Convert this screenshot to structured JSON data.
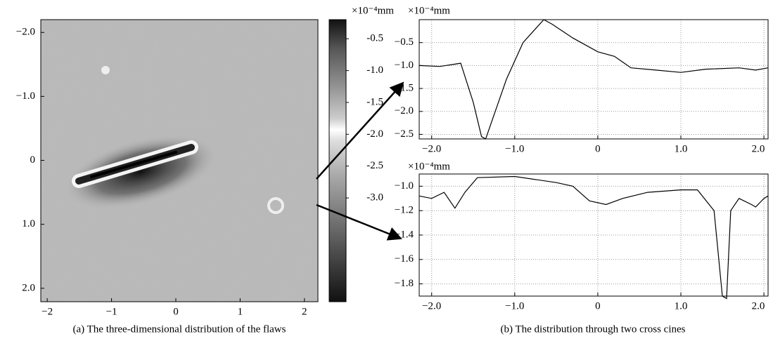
{
  "chart_data": [
    {
      "type": "heatmap",
      "caption": "(a) The three-dimensional distribution of the flaws",
      "xlim": [
        -2.1,
        2.21
      ],
      "ylim": [
        2.21,
        -2.2
      ],
      "xticks": [
        {
          "value": -2,
          "label": "−2"
        },
        {
          "value": -1,
          "label": "−1"
        },
        0,
        1,
        2
      ],
      "yticks": [
        {
          "value": -2,
          "label": "−2.0"
        },
        {
          "value": -1,
          "label": "−1.0"
        },
        0,
        {
          "value": 1,
          "label": "1.0"
        },
        {
          "value": 2,
          "label": "2.0"
        }
      ],
      "colorbar": {
        "unit": "×10⁻⁴mm",
        "lim": [
          -4.63,
          -0.2
        ],
        "ticks": [
          -0.5,
          {
            "value": -1,
            "label": "-1.0"
          },
          -1.5,
          {
            "value": -2,
            "label": "-2.0"
          },
          -2.5,
          {
            "value": -3,
            "label": "-3.0"
          }
        ]
      }
    },
    {
      "type": "line",
      "caption": "(b) The distribution through two cross cines",
      "unit": "×10⁻⁴mm",
      "x": [
        -2.15,
        -1.9,
        -1.65,
        -1.5,
        -1.4,
        -1.35,
        -1.1,
        -0.9,
        -0.65,
        -0.55,
        -0.3,
        0,
        0.2,
        0.4,
        0.7,
        1.0,
        1.3,
        1.7,
        1.9,
        2.05
      ],
      "values": [
        -1.0,
        -1.02,
        -0.95,
        -1.8,
        -2.55,
        -2.6,
        -1.3,
        -0.5,
        0,
        -0.1,
        -0.4,
        -0.7,
        -0.8,
        -1.05,
        -1.1,
        -1.15,
        -1.08,
        -1.05,
        -1.1,
        -1.05
      ],
      "color": "#000000",
      "xlim": [
        -2.15,
        2.05
      ],
      "ylim": [
        -2.6,
        0
      ],
      "xticks": [
        {
          "value": -2,
          "label": "−2.0"
        },
        {
          "value": -1,
          "label": "−1.0"
        },
        0,
        {
          "value": 1,
          "label": "1.0"
        },
        {
          "value": 2,
          "label": "2.0"
        }
      ],
      "yticks": [
        {
          "value": -0.5,
          "label": "−0.5"
        },
        {
          "value": -1,
          "label": "−1.0"
        },
        {
          "value": -1.5,
          "label": "−1.5"
        },
        {
          "value": -2,
          "label": "−2.0"
        },
        {
          "value": -2.5,
          "label": "−2.5"
        }
      ],
      "grid": true
    },
    {
      "type": "line",
      "unit": "×10⁻⁴mm",
      "x": [
        -2.15,
        -2.0,
        -1.85,
        -1.72,
        -1.6,
        -1.45,
        -1.0,
        -0.5,
        -0.3,
        -0.1,
        0.1,
        0.3,
        0.6,
        1.0,
        1.2,
        1.4,
        1.5,
        1.55,
        1.6,
        1.7,
        1.85,
        1.9,
        2.0,
        2.05
      ],
      "values": [
        -1.08,
        -1.1,
        -1.05,
        -1.18,
        -1.05,
        -0.93,
        -0.92,
        -0.97,
        -1.0,
        -1.12,
        -1.15,
        -1.1,
        -1.05,
        -1.03,
        -1.03,
        -1.2,
        -1.9,
        -1.92,
        -1.2,
        -1.1,
        -1.15,
        -1.17,
        -1.1,
        -1.08
      ],
      "color": "#000000",
      "xlim": [
        -2.15,
        2.05
      ],
      "ylim": [
        -1.9,
        -0.9
      ],
      "xticks": [
        {
          "value": -2,
          "label": "−2.0"
        },
        {
          "value": -1,
          "label": "−1.0"
        },
        0,
        {
          "value": 1,
          "label": "1.0"
        },
        {
          "value": 2,
          "label": "2.0"
        }
      ],
      "yticks": [
        {
          "value": -1,
          "label": "−1.0"
        },
        {
          "value": -1.2,
          "label": "−1.2"
        },
        {
          "value": -1.4,
          "label": "−1.4"
        },
        {
          "value": -1.6,
          "label": "−1.6"
        },
        {
          "value": -1.8,
          "label": "−1.8"
        }
      ],
      "grid": true
    }
  ]
}
